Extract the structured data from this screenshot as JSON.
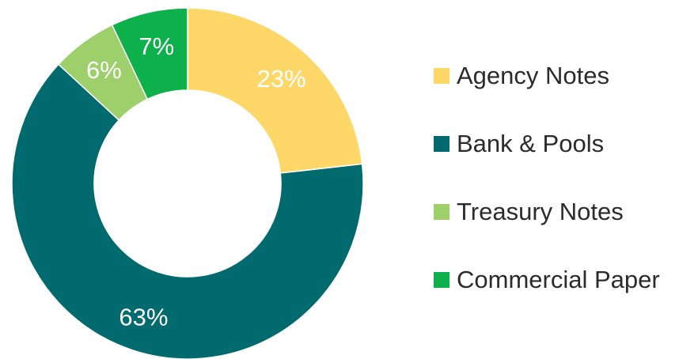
{
  "chart_data": {
    "type": "pie",
    "variant": "donut",
    "title": "",
    "categories": [
      "Agency Notes",
      "Bank & Pools",
      "Treasury Notes",
      "Commercial Paper"
    ],
    "values": [
      23,
      63,
      6,
      7
    ],
    "value_labels": [
      "23%",
      "63%",
      "6%",
      "7%"
    ],
    "colors": [
      "#fdd868",
      "#006a6e",
      "#9dd06b",
      "#0db14b"
    ],
    "legend_position": "right"
  }
}
